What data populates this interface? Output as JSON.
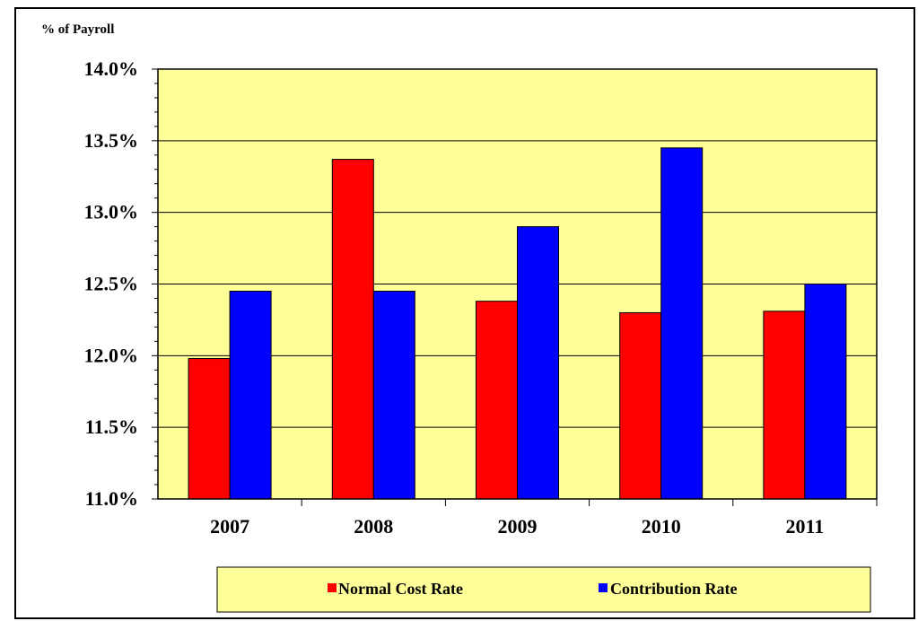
{
  "chart_data": {
    "type": "bar",
    "ylabel": "% of Payroll",
    "xlabel": "",
    "categories": [
      "2007",
      "2008",
      "2009",
      "2010",
      "2011"
    ],
    "series": [
      {
        "name": "Normal Cost Rate",
        "values": [
          11.98,
          13.37,
          12.38,
          12.3,
          12.31
        ],
        "color": "#ff0000"
      },
      {
        "name": "Contribution Rate",
        "values": [
          12.45,
          12.45,
          12.9,
          13.45,
          12.5
        ],
        "color": "#0000ff"
      }
    ],
    "ylim": [
      11.0,
      14.0
    ],
    "yticks": [
      11.0,
      11.5,
      12.0,
      12.5,
      13.0,
      13.5,
      14.0
    ],
    "ytick_labels": [
      "11.0%",
      "11.5%",
      "12.0%",
      "12.5%",
      "13.0%",
      "13.5%",
      "14.0%"
    ],
    "grid": true,
    "plot_background": "#ffff99",
    "legend_position": "bottom"
  }
}
